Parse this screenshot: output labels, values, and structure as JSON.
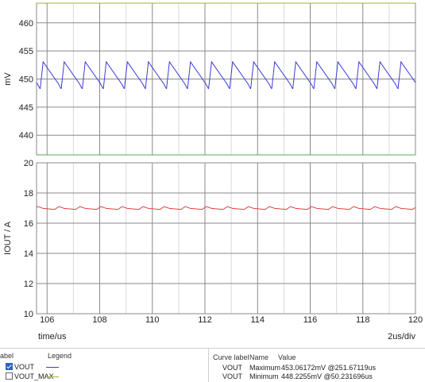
{
  "chart_data": [
    {
      "type": "line",
      "ylabel": "mV",
      "xlim": [
        105.6,
        120
      ],
      "ylim": [
        436.5,
        463.5
      ],
      "yticks": [
        440,
        445,
        450,
        455,
        460
      ],
      "grid": true,
      "series": [
        {
          "name": "VOUT",
          "color": "#3b3bd8",
          "kind": "ripple",
          "period": 0.8,
          "start": 105.85,
          "min": 448.23,
          "max": 453.06
        },
        {
          "name": "VOUT_MAX",
          "color": "#9cb338",
          "kind": "constant",
          "value": 463.5
        },
        {
          "name": "",
          "color": "#4cb050",
          "kind": "constant",
          "value": 436.5
        }
      ]
    },
    {
      "type": "line",
      "ylabel": "IOUT / A",
      "xlabel": "time/us",
      "xlim": [
        105.6,
        120
      ],
      "ylim": [
        10,
        20
      ],
      "xticks": [
        106,
        108,
        110,
        112,
        114,
        116,
        118,
        120
      ],
      "yticks": [
        10,
        12,
        14,
        16,
        18,
        20
      ],
      "grid": true,
      "scale_label": "2us/div",
      "series": [
        {
          "name": "IOUT",
          "color": "#e04040",
          "kind": "ripple-small",
          "period": 0.8,
          "start": 105.85,
          "min": 16.9,
          "max": 17.1
        }
      ]
    }
  ],
  "legend": {
    "label_header": "abel",
    "legend_header": "Legend",
    "items": [
      {
        "label": "VOUT",
        "checked": true,
        "color": "#3b3bd8"
      },
      {
        "label": "VOUT_MAX",
        "checked": false,
        "color": "#9cb338"
      }
    ]
  },
  "values_table": {
    "headers": [
      "Curve label",
      "Name",
      "Value"
    ],
    "rows": [
      {
        "curve": "VOUT",
        "name": "Maximum",
        "value": "453.06172mV @251.67119us"
      },
      {
        "curve": "VOUT",
        "name": "Minimum",
        "value": "448.2255mV @50.231696us"
      }
    ]
  }
}
